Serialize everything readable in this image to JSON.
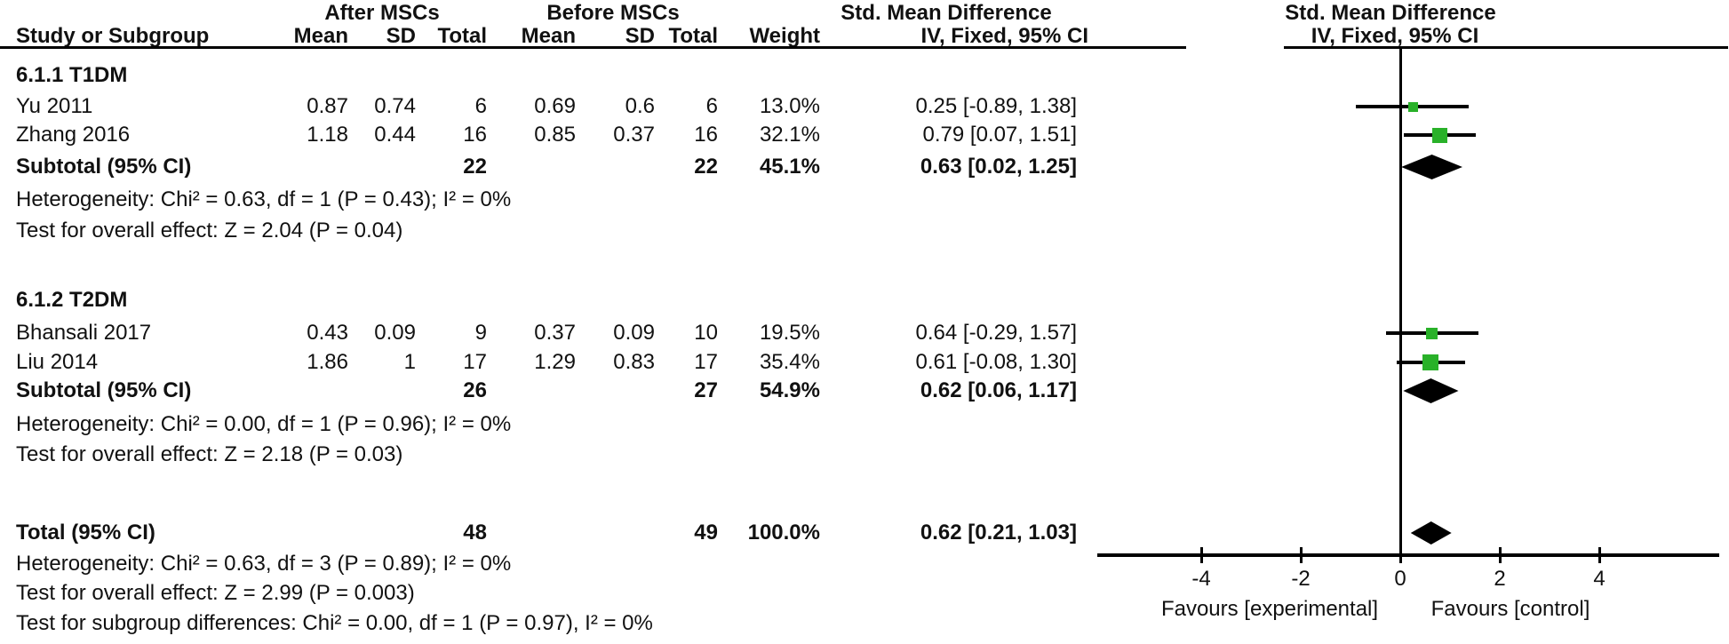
{
  "header": {
    "group_after": "After MSCs",
    "group_before": "Before MSCs",
    "smd_left": "Std. Mean Difference",
    "smd_right": "Std. Mean Difference",
    "col_study": "Study or Subgroup",
    "col_mean": "Mean",
    "col_sd": "SD",
    "col_total": "Total",
    "col_weight": "Weight",
    "ci_left": "IV, Fixed, 95% CI",
    "ci_right": "IV, Fixed, 95% CI"
  },
  "colors": {
    "square_green": "#29b129",
    "diamond_black": "#000000",
    "line_black": "#000000",
    "text": "#111111"
  },
  "chart_data": {
    "type": "forest",
    "effect_measure": "Std. Mean Difference",
    "model": "IV, Fixed, 95% CI",
    "axis": {
      "ticks": [
        -4,
        -2,
        0,
        2,
        4
      ],
      "xmin": -6.1,
      "xmax": 6.4,
      "favours_left": "Favours [experimental]",
      "favours_right": "Favours [control]"
    },
    "sections": [
      {
        "label": "6.1.1 T1DM",
        "rows": [
          {
            "study": "Yu 2011",
            "mean1": "0.87",
            "sd1": "0.74",
            "total1": "6",
            "mean2": "0.69",
            "sd2": "0.6",
            "total2": "6",
            "weight": "13.0%",
            "ci_text": "0.25 [-0.89, 1.38]",
            "est": 0.25,
            "lo": -0.89,
            "hi": 1.38,
            "weight_pct": 13.0
          },
          {
            "study": "Zhang 2016",
            "mean1": "1.18",
            "sd1": "0.44",
            "total1": "16",
            "mean2": "0.85",
            "sd2": "0.37",
            "total2": "16",
            "weight": "32.1%",
            "ci_text": "0.79 [0.07, 1.51]",
            "est": 0.79,
            "lo": 0.07,
            "hi": 1.51,
            "weight_pct": 32.1
          }
        ],
        "subtotal": {
          "label": "Subtotal (95% CI)",
          "total1": "22",
          "total2": "22",
          "weight": "45.1%",
          "ci_text": "0.63 [0.02, 1.25]",
          "est": 0.63,
          "lo": 0.02,
          "hi": 1.25
        },
        "heterogeneity": "Heterogeneity: Chi² = 0.63, df = 1 (P = 0.43); I² = 0%",
        "overall_effect": "Test for overall effect: Z = 2.04 (P = 0.04)"
      },
      {
        "label": "6.1.2 T2DM",
        "rows": [
          {
            "study": "Bhansali 2017",
            "mean1": "0.43",
            "sd1": "0.09",
            "total1": "9",
            "mean2": "0.37",
            "sd2": "0.09",
            "total2": "10",
            "weight": "19.5%",
            "ci_text": "0.64 [-0.29, 1.57]",
            "est": 0.64,
            "lo": -0.29,
            "hi": 1.57,
            "weight_pct": 19.5
          },
          {
            "study": "Liu 2014",
            "mean1": "1.86",
            "sd1": "1",
            "total1": "17",
            "mean2": "1.29",
            "sd2": "0.83",
            "total2": "17",
            "weight": "35.4%",
            "ci_text": "0.61 [-0.08, 1.30]",
            "est": 0.61,
            "lo": -0.08,
            "hi": 1.3,
            "weight_pct": 35.4
          }
        ],
        "subtotal": {
          "label": "Subtotal (95% CI)",
          "total1": "26",
          "total2": "27",
          "weight": "54.9%",
          "ci_text": "0.62 [0.06, 1.17]",
          "est": 0.62,
          "lo": 0.06,
          "hi": 1.17
        },
        "heterogeneity": "Heterogeneity: Chi² = 0.00, df = 1 (P = 0.96); I² = 0%",
        "overall_effect": "Test for overall effect: Z = 2.18 (P = 0.03)"
      }
    ],
    "total": {
      "label": "Total (95% CI)",
      "total1": "48",
      "total2": "49",
      "weight": "100.0%",
      "ci_text": "0.62 [0.21, 1.03]",
      "est": 0.62,
      "lo": 0.21,
      "hi": 1.03
    },
    "total_heterogeneity": "Heterogeneity: Chi² = 0.63, df = 3 (P = 0.89); I² = 0%",
    "total_overall_effect": "Test for overall effect: Z = 2.99 (P = 0.003)",
    "subgroup_differences": "Test for subgroup differences: Chi² = 0.00, df = 1 (P = 0.97), I² = 0%"
  }
}
